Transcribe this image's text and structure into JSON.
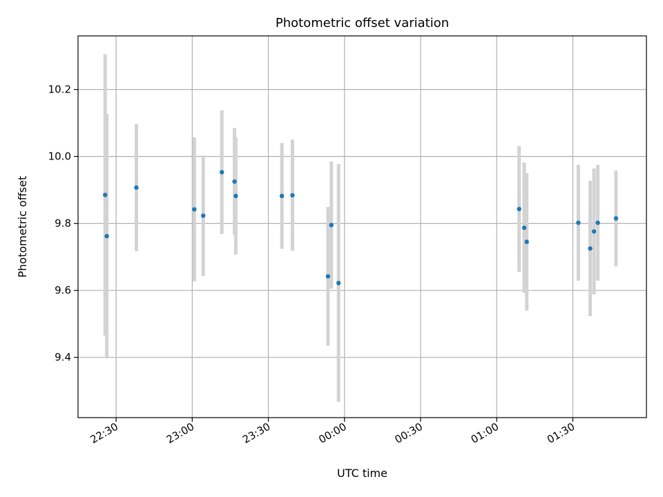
{
  "chart_data": {
    "type": "scatter",
    "title": "Photometric offset variation",
    "xlabel": "UTC time",
    "ylabel": "Photometric offset",
    "xlim": [
      "22:15",
      "01:59"
    ],
    "ylim": [
      9.22,
      10.36
    ],
    "x_ticks": [
      "22:30",
      "23:00",
      "23:30",
      "00:00",
      "00:30",
      "01:00",
      "01:30"
    ],
    "y_ticks": [
      9.4,
      9.6,
      9.8,
      10.0,
      10.2
    ],
    "y_tick_labels": [
      "9.4",
      "9.6",
      "9.8",
      "10.0",
      "10.2"
    ],
    "grid": true,
    "colors": {
      "points": "#1f77b4",
      "errorbars": "#d3d3d3",
      "grid": "#b0b0b0"
    },
    "series": [
      {
        "points": [
          {
            "x": "22:25:40",
            "y": 9.885,
            "err": 0.42
          },
          {
            "x": "22:26:20",
            "y": 9.762,
            "err": 0.365
          },
          {
            "x": "22:38:00",
            "y": 9.907,
            "err": 0.19
          },
          {
            "x": "23:00:50",
            "y": 9.842,
            "err": 0.215
          },
          {
            "x": "23:04:20",
            "y": 9.823,
            "err": 0.18
          },
          {
            "x": "23:11:40",
            "y": 9.953,
            "err": 0.185
          },
          {
            "x": "23:16:40",
            "y": 9.925,
            "err": 0.16
          },
          {
            "x": "23:17:10",
            "y": 9.882,
            "err": 0.175
          },
          {
            "x": "23:35:20",
            "y": 9.882,
            "err": 0.158
          },
          {
            "x": "23:39:30",
            "y": 9.884,
            "err": 0.166
          },
          {
            "x": "23:53:30",
            "y": 9.642,
            "err": 0.207
          },
          {
            "x": "23:54:50",
            "y": 9.795,
            "err": 0.19
          },
          {
            "x": "23:57:40",
            "y": 9.622,
            "err": 0.355
          },
          {
            "x": "01:08:50",
            "y": 9.843,
            "err": 0.188
          },
          {
            "x": "01:10:50",
            "y": 9.787,
            "err": 0.195
          },
          {
            "x": "01:11:50",
            "y": 9.745,
            "err": 0.205
          },
          {
            "x": "01:32:10",
            "y": 9.802,
            "err": 0.173
          },
          {
            "x": "01:36:50",
            "y": 9.725,
            "err": 0.202
          },
          {
            "x": "01:38:20",
            "y": 9.776,
            "err": 0.188
          },
          {
            "x": "01:39:50",
            "y": 9.802,
            "err": 0.173
          },
          {
            "x": "01:47:00",
            "y": 9.815,
            "err": 0.143
          }
        ]
      }
    ]
  }
}
